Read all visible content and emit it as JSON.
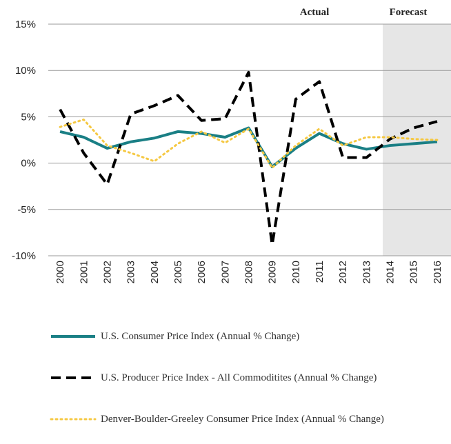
{
  "chart_data": {
    "type": "line",
    "annotations": [
      "Actual",
      "Forecast"
    ],
    "categories": [
      "2000",
      "2001",
      "2002",
      "2003",
      "2004",
      "2005",
      "2006",
      "2007",
      "2008",
      "2009",
      "2010",
      "2011",
      "2012",
      "2013",
      "2014",
      "2015",
      "2016"
    ],
    "series": [
      {
        "name": "U.S. Consumer Price Index (Annual % Change)",
        "color": "#1a7f85",
        "style": "solid",
        "values": [
          3.4,
          2.8,
          1.6,
          2.3,
          2.7,
          3.4,
          3.2,
          2.8,
          3.8,
          -0.4,
          1.6,
          3.2,
          2.1,
          1.5,
          1.9,
          2.1,
          2.3
        ]
      },
      {
        "name": "U.S. Producer Price Index - All Commoditites (Annual % Change)",
        "color": "#000000",
        "style": "dashed",
        "values": [
          5.8,
          1.1,
          -2.3,
          5.3,
          6.2,
          7.3,
          4.6,
          4.8,
          9.8,
          -8.8,
          6.9,
          8.8,
          0.6,
          0.6,
          2.6,
          3.8,
          4.5
        ]
      },
      {
        "name": "Denver-Boulder-Greeley Consumer Price Index (Annual % Change)",
        "color": "#f5c842",
        "style": "dotted",
        "values": [
          3.9,
          4.7,
          1.9,
          1.1,
          0.2,
          2.1,
          3.4,
          2.2,
          3.7,
          -0.5,
          1.9,
          3.7,
          1.9,
          2.8,
          2.8,
          2.6,
          2.5
        ]
      }
    ],
    "ylim": [
      -10,
      15
    ],
    "yticks": [
      {
        "value": -10,
        "label": "-10%"
      },
      {
        "value": -5,
        "label": "-5%"
      },
      {
        "value": 0,
        "label": "0%"
      },
      {
        "value": 5,
        "label": "5%"
      },
      {
        "value": 10,
        "label": "10%"
      },
      {
        "value": 15,
        "label": "15%"
      }
    ],
    "grid": true
  }
}
